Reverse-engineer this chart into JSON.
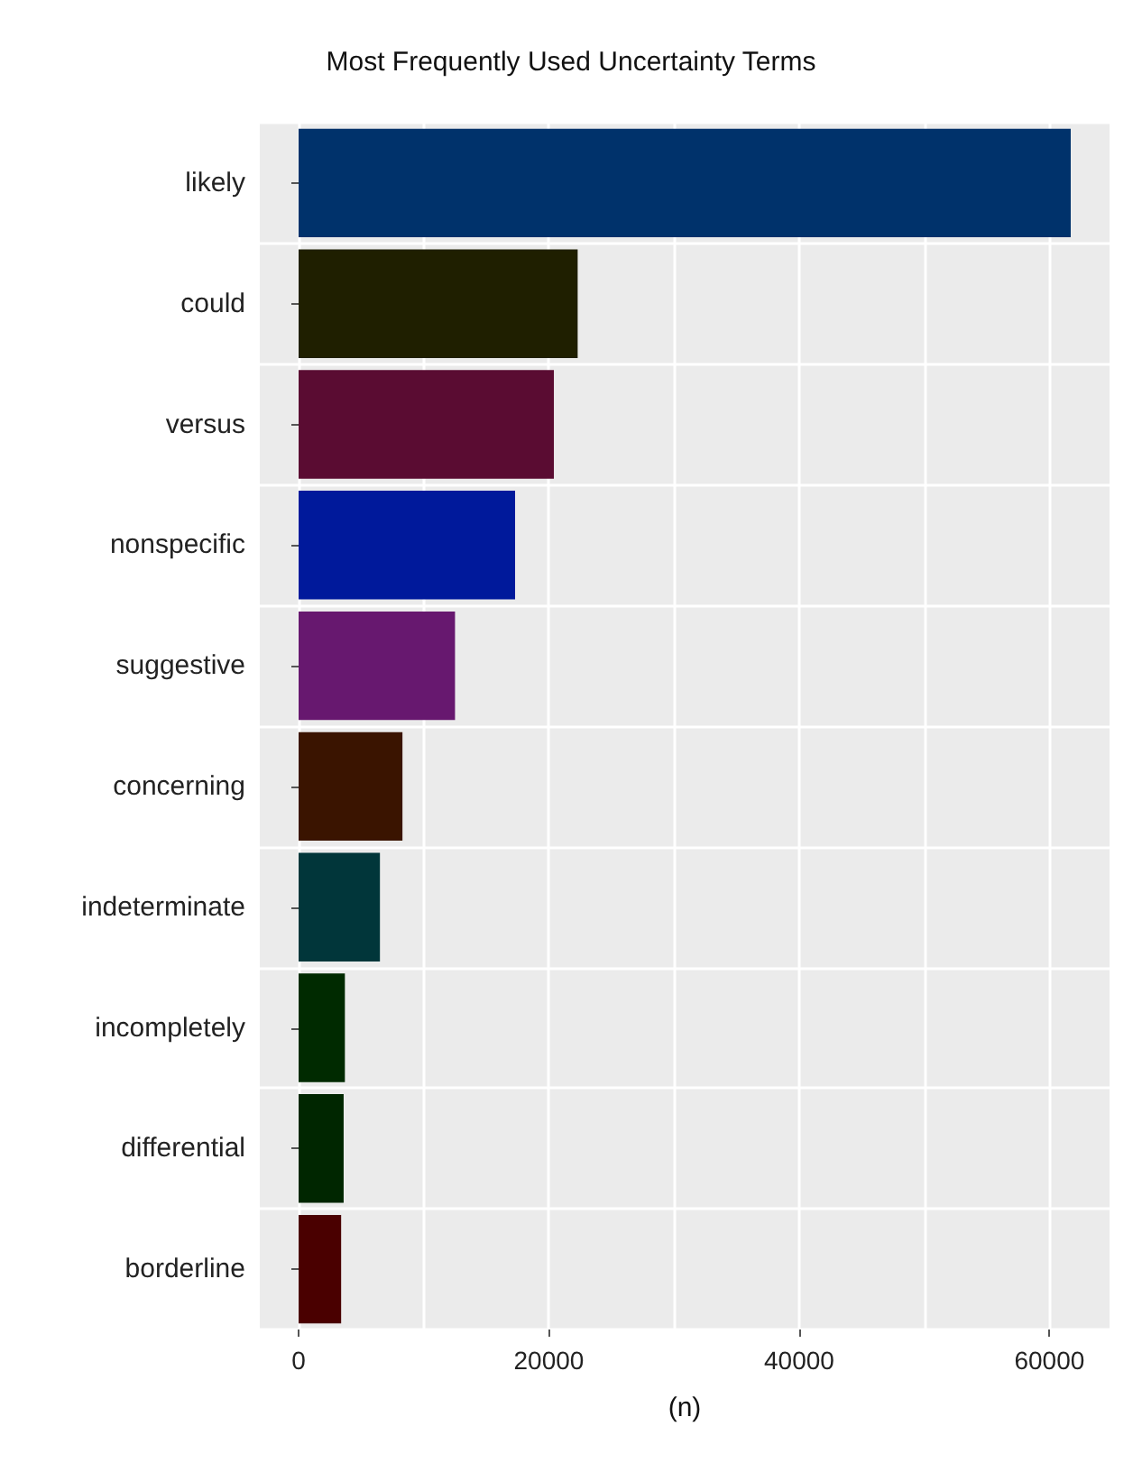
{
  "chart_data": {
    "type": "bar",
    "orientation": "horizontal",
    "title": "Most Frequently Used Uncertainty Terms",
    "xlabel": "(n)",
    "categories": [
      "likely",
      "could",
      "versus",
      "nonspecific",
      "suggestive",
      "concerning",
      "indeterminate",
      "incompletely",
      "differential",
      "borderline"
    ],
    "values": [
      61700,
      22300,
      20400,
      17300,
      12500,
      8300,
      6500,
      3700,
      3600,
      3400
    ],
    "colors": [
      "#00326b",
      "#1f1f00",
      "#5a0c32",
      "#00199b",
      "#67186f",
      "#3a1400",
      "#01363a",
      "#002a00",
      "#002600",
      "#4a0000"
    ],
    "xlim": [
      -3100,
      64800
    ],
    "xticks": [
      0,
      {
        "value": 10000,
        "label": null
      },
      20000,
      {
        "value": 30000,
        "label": null
      },
      40000,
      {
        "value": 50000,
        "label": null
      },
      60000
    ],
    "grid": true
  }
}
